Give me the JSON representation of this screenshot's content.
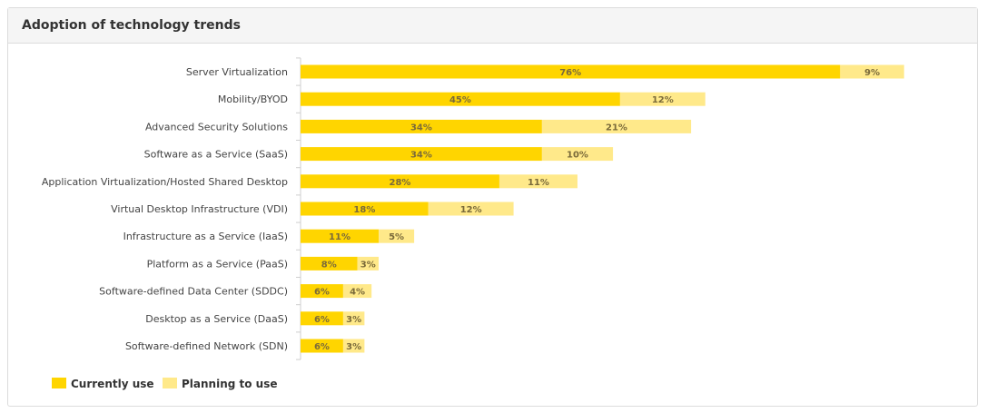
{
  "panel": {
    "title": "Adoption of technology trends"
  },
  "colors": {
    "current": "#ffd500",
    "planning": "#ffe98a",
    "axis": "#cfcfcf"
  },
  "chart_data": {
    "type": "bar",
    "orientation": "horizontal",
    "stacked": true,
    "title": "",
    "categories": [
      "Server Virtualization",
      "Mobility/BYOD",
      "Advanced Security Solutions",
      "Software as a Service (SaaS)",
      "Application Virtualization/Hosted Shared Desktop",
      "Virtual Desktop Infrastructure (VDI)",
      "Infrastructure as a Service (IaaS)",
      "Platform as a Service (PaaS)",
      "Software-defined Data Center (SDDC)",
      "Desktop as a Service (DaaS)",
      "Software-defined Network (SDN)"
    ],
    "series": [
      {
        "name": "Currently use",
        "values": [
          76,
          45,
          34,
          34,
          28,
          18,
          11,
          8,
          6,
          6,
          6
        ],
        "labels": [
          "76%",
          "45%",
          "34%",
          "34%",
          "28%",
          "18%",
          "11%",
          "8%",
          "6%",
          "6%",
          "6%"
        ]
      },
      {
        "name": "Planning to use",
        "values": [
          9,
          12,
          21,
          10,
          11,
          12,
          5,
          3,
          4,
          3,
          3
        ],
        "labels": [
          "9%",
          "12%",
          "21%",
          "10%",
          "11%",
          "12%",
          "5%",
          "3%",
          "4%",
          "3%",
          "3%"
        ]
      }
    ],
    "xlim": [
      0,
      100
    ],
    "grid": false,
    "legend": "bottom-left"
  }
}
